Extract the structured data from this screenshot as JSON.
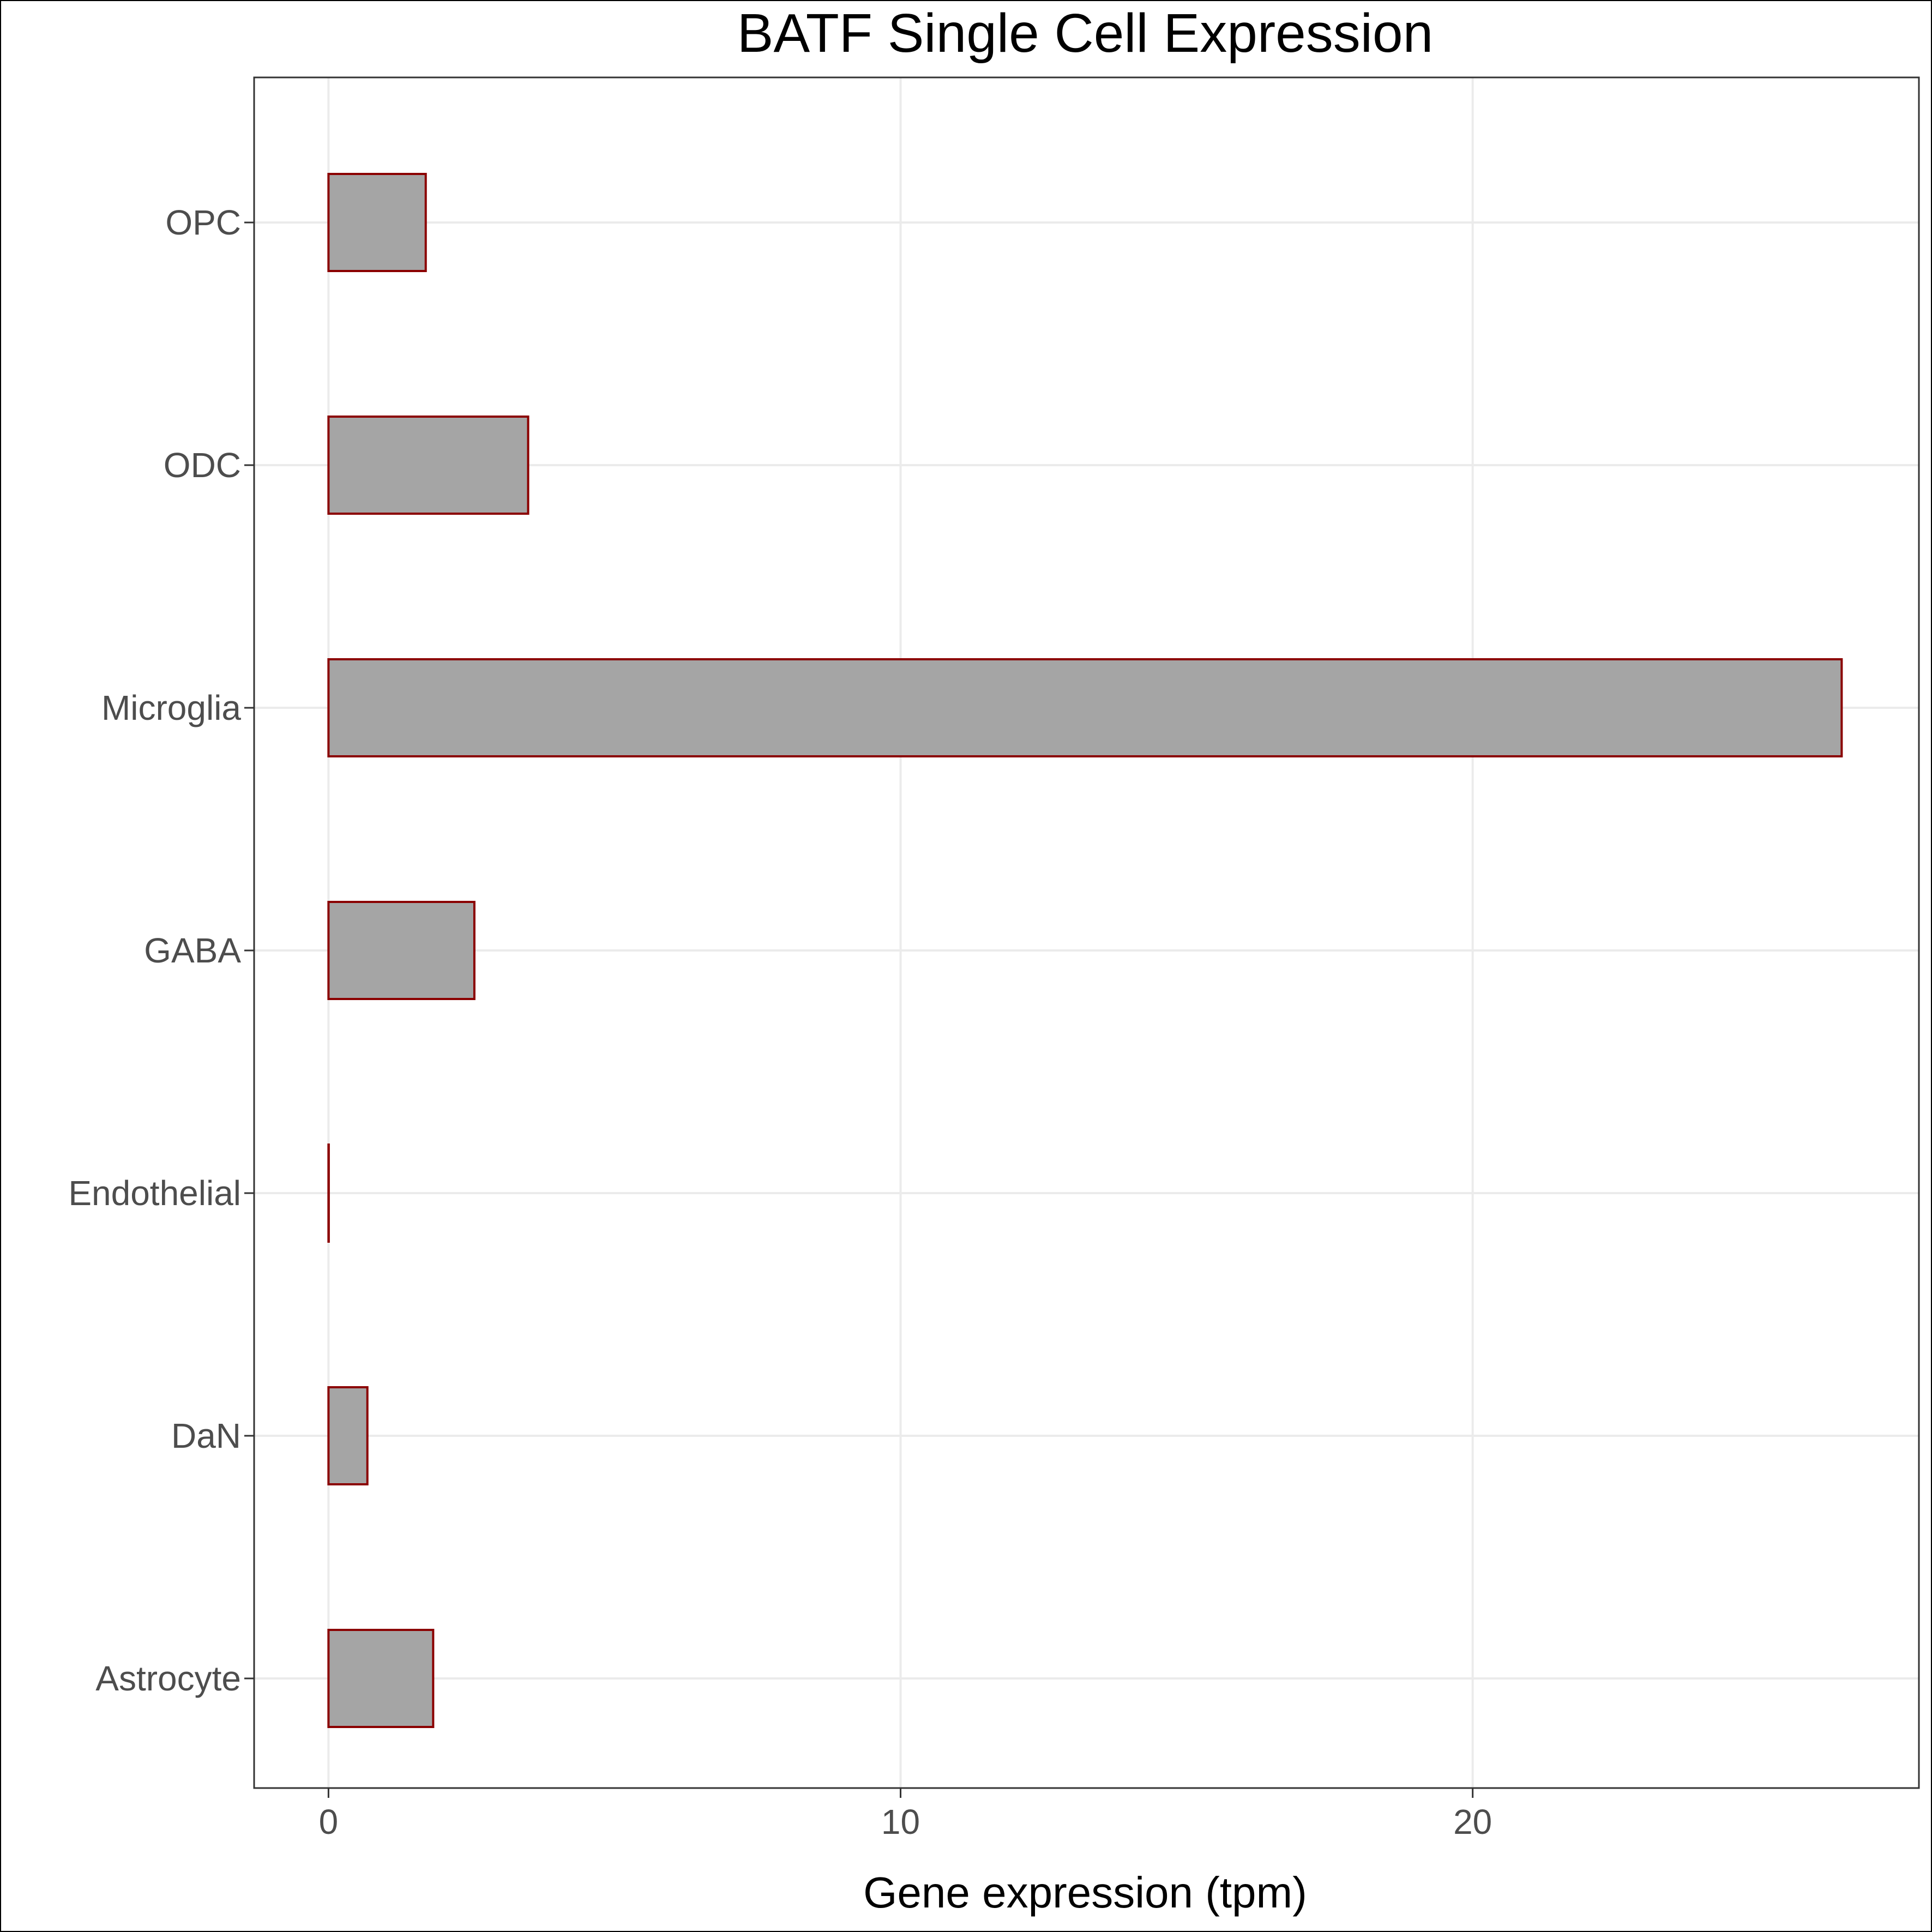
{
  "chart_data": {
    "type": "bar",
    "orientation": "horizontal",
    "title": "BATF Single Cell Expression",
    "xlabel": "Gene expression (tpm)",
    "ylabel": "",
    "categories": [
      "Astrocyte",
      "DaN",
      "Endothelial",
      "GABA",
      "Microglia",
      "ODC",
      "OPC"
    ],
    "values": [
      1.83,
      0.68,
      0.0,
      2.55,
      26.45,
      3.49,
      1.7
    ],
    "xlim": [
      -1.3,
      27.8
    ],
    "xticks": [
      0,
      10,
      20
    ],
    "grid": true,
    "legend": "none",
    "colors": {
      "bar_fill": "#a5a5a5",
      "bar_stroke": "#8b0000",
      "grid": "#ebebeb",
      "panel_border": "#333333"
    }
  }
}
